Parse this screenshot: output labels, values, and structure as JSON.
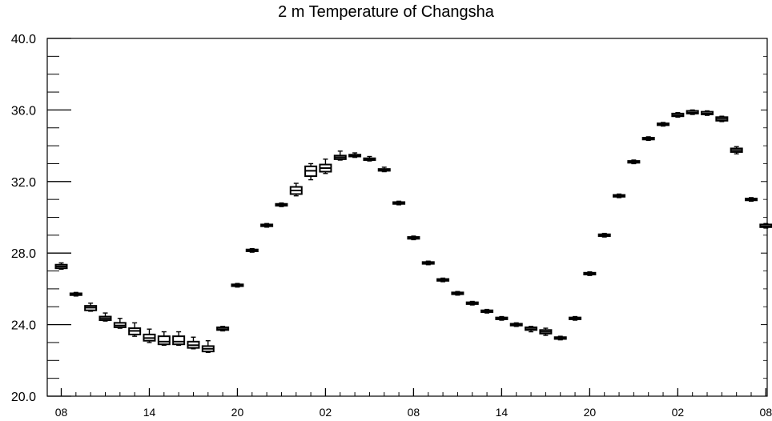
{
  "chart_data": {
    "type": "boxplot",
    "title": "2 m Temperature of Changsha",
    "xlabel": "",
    "ylabel": "",
    "ylim": [
      20.0,
      40.0
    ],
    "y_ticks": [
      "20.0",
      "24.0",
      "28.0",
      "32.0",
      "36.0",
      "40.0"
    ],
    "x_ticks": [
      {
        "index": 0,
        "label": "08"
      },
      {
        "index": 6,
        "label": "14"
      },
      {
        "index": 12,
        "label": "20"
      },
      {
        "index": 18,
        "label": "02"
      },
      {
        "index": 24,
        "label": "08"
      },
      {
        "index": 30,
        "label": "14"
      },
      {
        "index": 36,
        "label": "20"
      },
      {
        "index": 42,
        "label": "02"
      },
      {
        "index": 48,
        "label": "08"
      }
    ],
    "series": [
      {
        "q1": [
          27.15,
          25.65,
          24.8,
          24.25,
          23.85,
          23.45,
          23.1,
          22.9,
          22.9,
          22.7,
          22.5,
          23.7,
          26.15,
          28.1,
          29.5,
          30.65,
          31.3,
          32.3,
          32.55,
          33.25,
          33.4,
          33.2,
          32.6,
          30.75,
          28.8,
          27.4,
          26.45,
          25.7,
          25.15,
          24.7,
          24.3,
          23.95,
          23.7,
          23.5,
          23.2,
          24.3,
          26.8,
          28.95,
          31.15,
          33.05,
          34.35,
          35.15,
          35.65,
          35.8,
          35.75,
          35.4,
          33.65,
          30.95,
          29.45
        ],
        "median": [
          27.25,
          25.7,
          24.95,
          24.35,
          23.95,
          23.65,
          23.25,
          23.05,
          23.05,
          22.85,
          22.65,
          23.75,
          26.2,
          28.15,
          29.55,
          30.7,
          31.5,
          32.6,
          32.75,
          33.35,
          33.45,
          33.25,
          32.65,
          30.8,
          28.85,
          27.45,
          26.5,
          25.75,
          25.2,
          24.75,
          24.35,
          24.0,
          23.75,
          23.6,
          23.25,
          24.35,
          26.85,
          29.0,
          31.2,
          33.1,
          34.4,
          35.2,
          35.7,
          35.85,
          35.8,
          35.5,
          33.75,
          31.0,
          29.5
        ],
        "q3": [
          27.35,
          25.75,
          25.05,
          24.45,
          24.1,
          23.8,
          23.45,
          23.35,
          23.35,
          23.05,
          22.8,
          23.85,
          26.25,
          28.2,
          29.6,
          30.75,
          31.7,
          32.85,
          32.95,
          33.45,
          33.5,
          33.3,
          32.7,
          30.85,
          28.9,
          27.5,
          26.55,
          25.8,
          25.25,
          24.8,
          24.4,
          24.05,
          23.85,
          23.7,
          23.3,
          24.4,
          26.9,
          29.05,
          31.25,
          33.15,
          34.45,
          35.25,
          35.8,
          35.95,
          35.9,
          35.6,
          33.85,
          31.05,
          29.6
        ],
        "min": [
          27.1,
          25.6,
          24.75,
          24.2,
          23.8,
          23.35,
          23.0,
          22.85,
          22.85,
          22.65,
          22.45,
          23.65,
          26.1,
          28.05,
          29.45,
          30.6,
          31.2,
          32.1,
          32.45,
          33.2,
          33.35,
          33.15,
          32.55,
          30.7,
          28.75,
          27.35,
          26.4,
          25.65,
          25.1,
          24.65,
          24.25,
          23.9,
          23.6,
          23.4,
          23.15,
          24.25,
          26.75,
          28.9,
          31.1,
          33.0,
          34.3,
          35.1,
          35.6,
          35.75,
          35.7,
          35.35,
          33.55,
          30.9,
          29.4
        ],
        "max": [
          27.45,
          25.8,
          25.2,
          24.65,
          24.35,
          24.1,
          23.75,
          23.6,
          23.6,
          23.3,
          23.1,
          23.9,
          26.3,
          28.25,
          29.65,
          30.8,
          31.9,
          33.0,
          33.25,
          33.7,
          33.6,
          33.4,
          32.8,
          30.9,
          28.95,
          27.55,
          26.6,
          25.85,
          25.3,
          24.85,
          24.45,
          24.1,
          23.9,
          23.8,
          23.35,
          24.45,
          26.95,
          29.1,
          31.3,
          33.2,
          34.5,
          35.3,
          35.85,
          36.0,
          35.95,
          35.65,
          33.95,
          31.1,
          29.65
        ]
      }
    ]
  }
}
